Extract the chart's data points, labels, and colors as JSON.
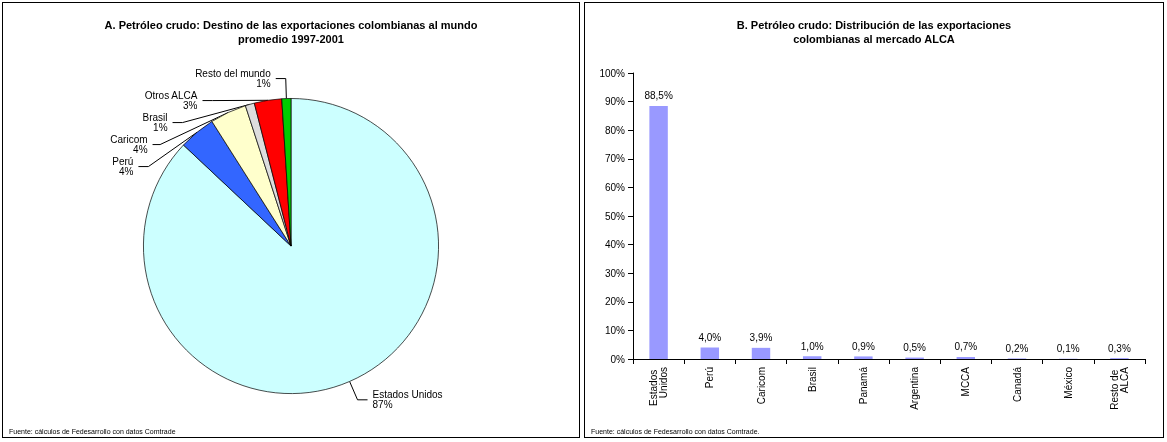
{
  "chart_data": [
    {
      "type": "pie",
      "title": "A. Petróleo crudo: Destino de las exportaciones colombianas al mundo\npromedio 1997-2001",
      "categories": [
        "Estados Unidos",
        "Perú",
        "Caricom",
        "Brasil",
        "Otros ALCA",
        "Resto del mundo"
      ],
      "values": [
        87,
        4,
        4,
        1,
        3,
        1
      ],
      "value_labels": [
        "87%",
        "4%",
        "4%",
        "1%",
        "3%",
        "1%"
      ],
      "colors": [
        "#ccffff",
        "#3366ff",
        "#ffffcc",
        "#dddddd",
        "#ff0000",
        "#00cc00"
      ],
      "legend": false,
      "annotations": [
        "Fuente: cálculos de Fedesarrollo con datos Comtrade"
      ]
    },
    {
      "type": "bar",
      "title": "B. Petróleo crudo: Distribución de las exportaciones\ncolombianas al mercado ALCA",
      "categories": [
        "Estados Unidos",
        "Perú",
        "Caricom",
        "Brasil",
        "Panamá",
        "Argentina",
        "MCCA",
        "Canadá",
        "México",
        "Resto de ALCA"
      ],
      "values": [
        88.5,
        4.0,
        3.9,
        1.0,
        0.9,
        0.5,
        0.7,
        0.2,
        0.1,
        0.3
      ],
      "value_labels": [
        "88,5%",
        "4,0%",
        "3,9%",
        "1,0%",
        "0,9%",
        "0,5%",
        "0,7%",
        "0,2%",
        "0,1%",
        "0,3%"
      ],
      "color": "#9999ff",
      "ylim": [
        0,
        100
      ],
      "yticks": [
        {
          "value": 0,
          "label": "0%"
        },
        {
          "value": 10,
          "label": "10%"
        },
        {
          "value": 20,
          "label": "20%"
        },
        {
          "value": 30,
          "label": "30%"
        },
        {
          "value": 40,
          "label": "40%"
        },
        {
          "value": 50,
          "label": "50%"
        },
        {
          "value": 60,
          "label": "60%"
        },
        {
          "value": 70,
          "label": "70%"
        },
        {
          "value": 80,
          "label": "80%"
        },
        {
          "value": 90,
          "label": "90%"
        },
        {
          "value": 100,
          "label": "100%"
        }
      ],
      "grid": false,
      "legend": false,
      "annotations": [
        "Fuente: cálculos de Fedesarrollo con datos Comtrade."
      ]
    }
  ]
}
